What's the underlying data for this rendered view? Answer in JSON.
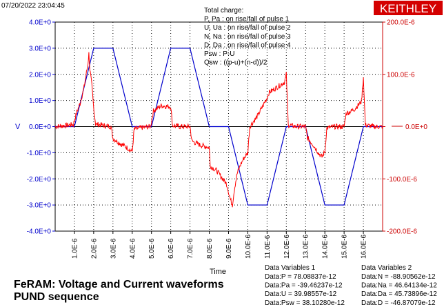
{
  "timestamp": "07/20/2022 23:04:45",
  "brand": "KEITHLEY",
  "caption_line1": "FeRAM: Voltage and Current waveforms",
  "caption_line2": "PUND sequence",
  "annotations": [
    "Total charge:",
    "P, Pa  :  on rise/fall of pulse 1",
    "U, Ua  :  on rise/fall of pulse 2",
    "N, Na  :  on rise/fall of pulse 3",
    "D, Da  :  on rise/fall of pulse 4",
    "Psw :  P-U",
    "Qsw :  ((p-u)+(n-d))/2"
  ],
  "data_variables_1": {
    "title": "Data Variables 1",
    "lines": [
      "Data:P = 78.08837e-12",
      "Data:Pa = -39.46237e-12",
      "Data:U = 39.98557e-12",
      "Data:Psw = 38.10280e-12"
    ]
  },
  "data_variables_2": {
    "title": "Data Variables 2",
    "lines": [
      "Data:N = -88.90562e-12",
      "Data:Na = 46.64134e-12",
      "Data:Da = 45.73896e-12",
      "Data:D = -46.87079e-12"
    ]
  },
  "chart_data": {
    "type": "line",
    "xlabel": "Time",
    "ylabel": "V",
    "y2label": "0.0E+0",
    "xlim": [
      0.0,
      1.7e-05
    ],
    "ylim": [
      -4.0,
      4.0
    ],
    "y2lim": [
      -0.0002,
      0.0002
    ],
    "x_ticks": [
      "1.0E-6",
      "2.0E-6",
      "3.0E-6",
      "4.0E-6",
      "5.0E-6",
      "6.0E-6",
      "7.0E-6",
      "8.0E-6",
      "9.0E-6",
      "10.0E-6",
      "11.0E-6",
      "12.0E-6",
      "13.0E-6",
      "14.0E-6",
      "15.0E-6",
      "16.0E-6"
    ],
    "x_tick_values": [
      1e-06,
      2e-06,
      3e-06,
      4e-06,
      5e-06,
      6e-06,
      7e-06,
      8e-06,
      9e-06,
      1e-05,
      1.1e-05,
      1.2e-05,
      1.3e-05,
      1.4e-05,
      1.5e-05,
      1.6e-05
    ],
    "y_ticks": [
      "4.0E+0",
      "3.0E+0",
      "2.0E+0",
      "1.0E+0",
      "0.0E+0",
      "-1.0E+0",
      "-2.0E+0",
      "-3.0E+0",
      "-4.0E+0"
    ],
    "y_tick_values": [
      4,
      3,
      2,
      1,
      0,
      -1,
      -2,
      -3,
      -4
    ],
    "y2_ticks": [
      "200.0E-6",
      "100.0E-6",
      "0.0E+0",
      "-100.0E-6",
      "-200.0E-6"
    ],
    "y2_tick_values": [
      0.0002,
      0.0001,
      0,
      -0.0001,
      -0.0002
    ],
    "grid": true,
    "series": [
      {
        "axis": "left",
        "color": "#0000cc",
        "x": [
          0,
          1e-06,
          2e-06,
          3e-06,
          4e-06,
          5e-06,
          6e-06,
          7e-06,
          8e-06,
          9e-06,
          1e-05,
          1.1e-05,
          1.2e-05,
          1.3e-05,
          1.4e-05,
          1.5e-05,
          1.6e-05,
          1.7e-05
        ],
        "values": [
          0,
          0,
          3.0,
          3.0,
          0,
          0,
          3.0,
          3.0,
          0,
          0,
          -3.0,
          -3.0,
          0,
          0,
          -3.0,
          -3.0,
          0,
          0
        ]
      },
      {
        "axis": "right",
        "color": "#ff0000",
        "x": [
          0,
          5e-07,
          9.5e-07,
          1.1e-06,
          1.3e-06,
          1.5e-06,
          1.7e-06,
          1.75e-06,
          1.8e-06,
          1.9e-06,
          2e-06,
          2.1e-06,
          2.5e-06,
          2.9e-06,
          3e-06,
          3.2e-06,
          3.5e-06,
          3.8e-06,
          4e-06,
          4.1e-06,
          4.5e-06,
          4.95e-06,
          5.1e-06,
          5.5e-06,
          6e-06,
          6.1e-06,
          6.5e-06,
          7e-06,
          7.1e-06,
          7.5e-06,
          8e-06,
          8.05e-06,
          8.4e-06,
          8.7e-06,
          8.9e-06,
          9.1e-06,
          9.2e-06,
          9.3e-06,
          9.45e-06,
          9.6e-06,
          9.8e-06,
          1e-05,
          1.01e-05,
          1.05e-05,
          1.1e-05,
          1.11e-05,
          1.15e-05,
          1.19e-05,
          1.2e-05,
          1.21e-05,
          1.25e-05,
          1.3e-05,
          1.31e-05,
          1.34e-05,
          1.37e-05,
          1.385e-05,
          1.4e-05,
          1.41e-05,
          1.45e-05,
          1.5e-05,
          1.51e-05,
          1.55e-05,
          1.59e-05,
          1.6e-05,
          1.61e-05,
          1.65e-05,
          1.7e-05
        ],
        "values": [
          0,
          2e-06,
          4e-06,
          2.5e-05,
          4.5e-05,
          7.5e-05,
          0.00012,
          0.00014,
          0.00011,
          8e-05,
          3.5e-05,
          5e-06,
          2e-06,
          0,
          -2.2e-05,
          -2.8e-05,
          -3.5e-05,
          -4.2e-05,
          -4.8e-05,
          -5e-06,
          -2e-06,
          0,
          3e-05,
          4e-05,
          3.8e-05,
          2e-06,
          0,
          0,
          -2.8e-05,
          -3.5e-05,
          -4e-05,
          -7.5e-05,
          -8.5e-05,
          -0.0001,
          -0.00011,
          -0.00014,
          -0.00015,
          -0.00012,
          -9e-05,
          -7.5e-05,
          -6e-05,
          -5e-05,
          0,
          2e-05,
          5.5e-05,
          6.5e-05,
          7.5e-05,
          8.5e-05,
          0.0001,
          3e-06,
          0,
          0,
          -2.2e-05,
          -3.5e-05,
          -5.2e-05,
          -5.8e-05,
          -4.8e-05,
          -3e-06,
          0,
          0,
          2.5e-05,
          3.2e-05,
          4.8e-05,
          9.5e-05,
          3e-06,
          0,
          0
        ]
      }
    ]
  }
}
